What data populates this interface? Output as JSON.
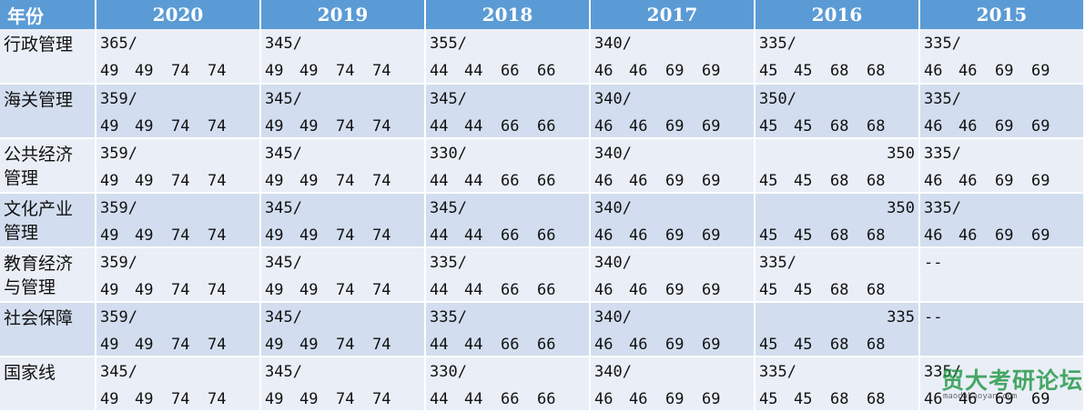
{
  "header": {
    "label": "年份",
    "years": [
      "2020",
      "2019",
      "2018",
      "2017",
      "2016",
      "2015"
    ]
  },
  "rows": [
    {
      "name": "行政管理",
      "cells": [
        {
          "total": "365/",
          "subs": [
            "49",
            "49",
            "74",
            "74"
          ]
        },
        {
          "total": "345/",
          "subs": [
            "49",
            "49",
            "74",
            "74"
          ]
        },
        {
          "total": "355/",
          "subs": [
            "44",
            "44",
            "66",
            "66"
          ]
        },
        {
          "total": "340/",
          "subs": [
            "46",
            "46",
            "69",
            "69"
          ]
        },
        {
          "total": "335/",
          "subs": [
            "45",
            "45",
            "68",
            "68"
          ]
        },
        {
          "total": "335/",
          "subs": [
            "46",
            "46",
            "69",
            "69"
          ]
        }
      ]
    },
    {
      "name": "海关管理",
      "cells": [
        {
          "total": "359/",
          "subs": [
            "49",
            "49",
            "74",
            "74"
          ]
        },
        {
          "total": "345/",
          "subs": [
            "49",
            "49",
            "74",
            "74"
          ]
        },
        {
          "total": "345/",
          "subs": [
            "44",
            "44",
            "66",
            "66"
          ]
        },
        {
          "total": "340/",
          "subs": [
            "46",
            "46",
            "69",
            "69"
          ]
        },
        {
          "total": "350/",
          "subs": [
            "45",
            "45",
            "68",
            "68"
          ]
        },
        {
          "total": "335/",
          "subs": [
            "46",
            "46",
            "69",
            "69"
          ]
        }
      ]
    },
    {
      "name": "公共经济\n管理",
      "cells": [
        {
          "total": "359/",
          "subs": [
            "49",
            "49",
            "74",
            "74"
          ]
        },
        {
          "total": "345/",
          "subs": [
            "49",
            "49",
            "74",
            "74"
          ]
        },
        {
          "total": "330/",
          "subs": [
            "44",
            "44",
            "66",
            "66"
          ]
        },
        {
          "total": "340/",
          "subs": [
            "46",
            "46",
            "69",
            "69"
          ]
        },
        {
          "total": "350",
          "subs": [
            "45",
            "45",
            "68",
            "68"
          ]
        },
        {
          "total": "335/",
          "subs": [
            "46",
            "46",
            "69",
            "69"
          ]
        }
      ]
    },
    {
      "name": "文化产业\n管理",
      "cells": [
        {
          "total": "359/",
          "subs": [
            "49",
            "49",
            "74",
            "74"
          ]
        },
        {
          "total": "345/",
          "subs": [
            "49",
            "49",
            "74",
            "74"
          ]
        },
        {
          "total": "345/",
          "subs": [
            "44",
            "44",
            "66",
            "66"
          ]
        },
        {
          "total": "340/",
          "subs": [
            "46",
            "46",
            "69",
            "69"
          ]
        },
        {
          "total": "350",
          "subs": [
            "45",
            "45",
            "68",
            "68"
          ]
        },
        {
          "total": "335/",
          "subs": [
            "46",
            "46",
            "69",
            "69"
          ]
        }
      ]
    },
    {
      "name": "教育经济\n与管理",
      "cells": [
        {
          "total": "359/",
          "subs": [
            "49",
            "49",
            "74",
            "74"
          ]
        },
        {
          "total": "345/",
          "subs": [
            "49",
            "49",
            "74",
            "74"
          ]
        },
        {
          "total": "335/",
          "subs": [
            "44",
            "44",
            "66",
            "66"
          ]
        },
        {
          "total": "340/",
          "subs": [
            "46",
            "46",
            "69",
            "69"
          ]
        },
        {
          "total": "335/",
          "subs": [
            "45",
            "45",
            "68",
            "68"
          ]
        },
        {
          "total": "--",
          "subs": []
        }
      ]
    },
    {
      "name": "社会保障",
      "cells": [
        {
          "total": "359/",
          "subs": [
            "49",
            "49",
            "74",
            "74"
          ]
        },
        {
          "total": "345/",
          "subs": [
            "49",
            "49",
            "74",
            "74"
          ]
        },
        {
          "total": "335/",
          "subs": [
            "44",
            "44",
            "66",
            "66"
          ]
        },
        {
          "total": "340/",
          "subs": [
            "46",
            "46",
            "69",
            "69"
          ]
        },
        {
          "total": "335",
          "subs": [
            "45",
            "45",
            "68",
            "68"
          ]
        },
        {
          "total": "--",
          "subs": []
        }
      ]
    },
    {
      "name": "国家线",
      "cells": [
        {
          "total": "345/",
          "subs": [
            "49",
            "49",
            "74",
            "74"
          ]
        },
        {
          "total": "345/",
          "subs": [
            "49",
            "49",
            "74",
            "74"
          ]
        },
        {
          "total": "330/",
          "subs": [
            "44",
            "44",
            "66",
            "66"
          ]
        },
        {
          "total": "340/",
          "subs": [
            "46",
            "46",
            "69",
            "69"
          ]
        },
        {
          "total": "335/",
          "subs": [
            "45",
            "45",
            "68",
            "68"
          ]
        },
        {
          "total": "335/",
          "subs": [
            "46",
            "46",
            "69",
            "69"
          ]
        }
      ]
    }
  ],
  "right_aligned_totals": [
    "350",
    "335"
  ],
  "watermark": {
    "text": "贸大考研论坛",
    "url": "maodakaoyan.com"
  },
  "colors": {
    "header_bg": "#5b9bd5",
    "row_light": "#eaeff7",
    "row_dark": "#d2deef",
    "watermark": "#229646"
  }
}
